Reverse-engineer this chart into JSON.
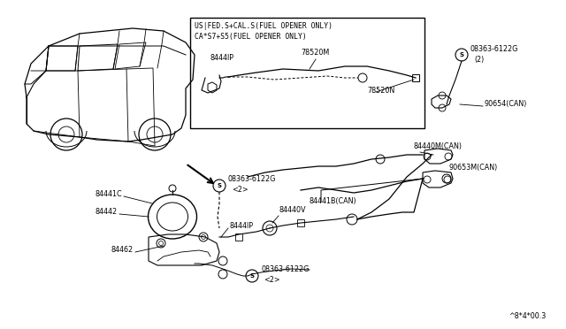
{
  "bg_color": "#ffffff",
  "lc": "#000000",
  "footer": "^8*4*00.3",
  "box_text1": "US|FED.S+CAL.S(FUEL OPENER ONLY)",
  "box_text2": "CA*S7+S5(FUEL OPENER ONLY)",
  "figsize": [
    6.4,
    3.72
  ],
  "dpi": 100
}
